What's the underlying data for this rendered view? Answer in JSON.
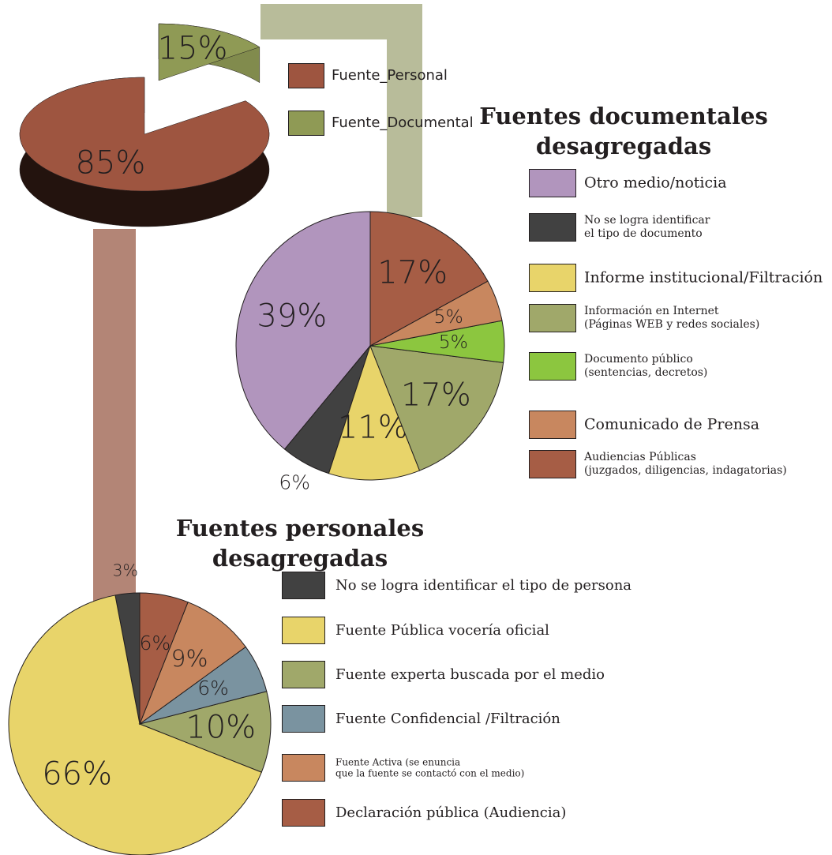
{
  "chart_data": [
    {
      "type": "pie3d",
      "categories": [
        "Fuente_Personal",
        "Fuente_Documental"
      ],
      "values": [
        85,
        15
      ],
      "value_labels": [
        "85%",
        "15%"
      ],
      "colors": [
        "#9e5540",
        "#8f9a55"
      ]
    },
    {
      "type": "pie",
      "title": "Fuentes documentales\ndesagregadas",
      "categories": [
        "Otro medio/noticia",
        "No se logra identificar\nel tipo de documento",
        "Informe institucional/Filtración",
        "Información en Internet\n(Páginas WEB y redes sociales)",
        "Documento público\n(sentencias, decretos)",
        "Comunicado de Prensa",
        "Audiencias Públicas\n(juzgados, diligencias, indagatorias)"
      ],
      "values": [
        39,
        6,
        11,
        17,
        5,
        5,
        17
      ],
      "value_labels": [
        "39%",
        "6%",
        "11%",
        "17%",
        "5%",
        "5%",
        "17%"
      ],
      "colors": [
        "#b195bd",
        "#414141",
        "#e8d46a",
        "#a0a86a",
        "#8cc63f",
        "#c8875f",
        "#a65d45"
      ]
    },
    {
      "type": "pie",
      "title": "Fuentes personales\ndesagregadas",
      "categories": [
        "No se logra identificar el tipo de persona",
        "Fuente Pública vocería oficial",
        "Fuente experta buscada por el medio",
        "Fuente Confidencial /Filtración",
        "Fuente Activa (se enuncia\nque la fuente se contactó con el medio)",
        "Declaración pública (Audiencia)"
      ],
      "values": [
        3,
        66,
        10,
        6,
        9,
        6
      ],
      "value_labels": [
        "3%",
        "66%",
        "10%",
        "6%",
        "9%",
        "6%"
      ],
      "colors": [
        "#414141",
        "#e8d46a",
        "#a0a86a",
        "#7a93a0",
        "#c8875f",
        "#a65d45"
      ]
    }
  ]
}
